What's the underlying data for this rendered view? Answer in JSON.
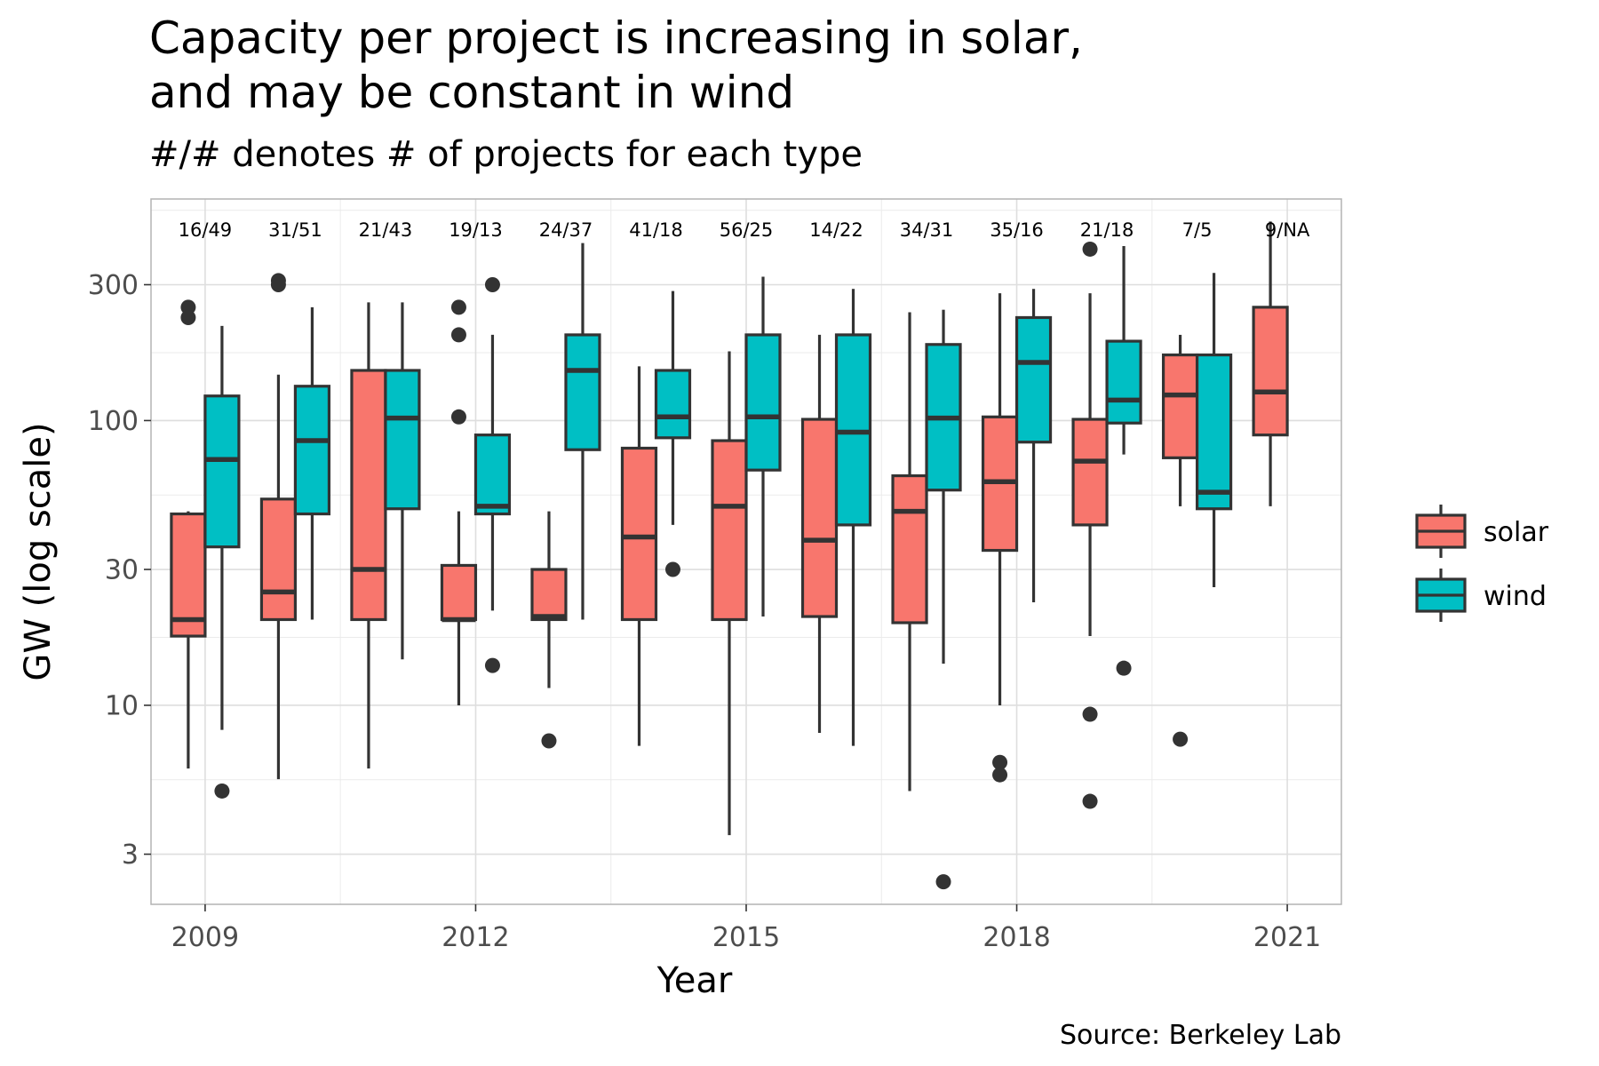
{
  "chart_data": {
    "type": "boxplot",
    "title": [
      "Capacity per project is increasing in solar,",
      "and may be constant in wind"
    ],
    "subtitle": "#/# denotes # of projects for each type",
    "xlabel": "Year",
    "ylabel": "GW (log scale)",
    "caption": "Source: Berkeley Lab",
    "y_scale": "log10",
    "ylim": [
      2.0,
      600
    ],
    "y_ticks": [
      3,
      10,
      30,
      100,
      300
    ],
    "x_ticks": [
      2009,
      2012,
      2015,
      2018,
      2021
    ],
    "xlim": [
      2008.4,
      2021.6
    ],
    "grid": true,
    "legend": {
      "position": "right",
      "entries": [
        "solar",
        "wind"
      ]
    },
    "colors": {
      "solar": "#F8766D",
      "wind": "#00BFC4",
      "line": "#333333",
      "grid": "#ebebeb",
      "border": "#b3b3b3"
    },
    "counts": [
      {
        "year": 2009,
        "label": "16/49"
      },
      {
        "year": 2010,
        "label": "31/51"
      },
      {
        "year": 2011,
        "label": "21/43"
      },
      {
        "year": 2012,
        "label": "19/13"
      },
      {
        "year": 2013,
        "label": "24/37"
      },
      {
        "year": 2014,
        "label": "41/18"
      },
      {
        "year": 2015,
        "label": "56/25"
      },
      {
        "year": 2016,
        "label": "14/22"
      },
      {
        "year": 2017,
        "label": "34/31"
      },
      {
        "year": 2018,
        "label": "35/16"
      },
      {
        "year": 2019,
        "label": "21/18"
      },
      {
        "year": 2020,
        "label": "7/5"
      },
      {
        "year": 2021,
        "label": "9/NA"
      }
    ],
    "series": [
      {
        "name": "solar",
        "boxes": [
          {
            "year": 2009,
            "low": 6,
            "q1": 17.5,
            "median": 20,
            "q3": 47,
            "high": 48,
            "outliers": [
              250,
              230
            ]
          },
          {
            "year": 2010,
            "low": 5.5,
            "q1": 20,
            "median": 25,
            "q3": 53,
            "high": 145,
            "outliers": [
              300,
              310
            ]
          },
          {
            "year": 2011,
            "low": 6,
            "q1": 20,
            "median": 30,
            "q3": 150,
            "high": 260,
            "outliers": []
          },
          {
            "year": 2012,
            "low": 10,
            "q1": 20,
            "median": 20,
            "q3": 31,
            "high": 48,
            "outliers": [
              250,
              200,
              103
            ]
          },
          {
            "year": 2013,
            "low": 11.5,
            "q1": 20,
            "median": 20.5,
            "q3": 30,
            "high": 48,
            "outliers": [
              7.5
            ]
          },
          {
            "year": 2014,
            "low": 7.2,
            "q1": 20,
            "median": 39,
            "q3": 80,
            "high": 155,
            "outliers": []
          },
          {
            "year": 2015,
            "low": 3.5,
            "q1": 20,
            "median": 50,
            "q3": 85,
            "high": 175,
            "outliers": []
          },
          {
            "year": 2016,
            "low": 8,
            "q1": 20.5,
            "median": 38,
            "q3": 101,
            "high": 200,
            "outliers": []
          },
          {
            "year": 2017,
            "low": 5,
            "q1": 19.5,
            "median": 48,
            "q3": 64,
            "high": 240,
            "outliers": []
          },
          {
            "year": 2018,
            "low": 10,
            "q1": 35,
            "median": 61,
            "q3": 103,
            "high": 280,
            "outliers": [
              6.3,
              5.7
            ]
          },
          {
            "year": 2019,
            "low": 17.5,
            "q1": 43,
            "median": 72,
            "q3": 101,
            "high": 280,
            "outliers": [
              9.3,
              4.6,
              400
            ]
          },
          {
            "year": 2020,
            "low": 50,
            "q1": 74,
            "median": 123,
            "q3": 170,
            "high": 200,
            "outliers": [
              7.6
            ]
          },
          {
            "year": 2021,
            "low": 50,
            "q1": 89,
            "median": 126,
            "q3": 250,
            "high": 500,
            "outliers": []
          }
        ]
      },
      {
        "name": "wind",
        "boxes": [
          {
            "year": 2009,
            "low": 8.2,
            "q1": 36,
            "median": 73,
            "q3": 122,
            "high": 215,
            "outliers": [
              5
            ]
          },
          {
            "year": 2010,
            "low": 20,
            "q1": 47,
            "median": 85,
            "q3": 132,
            "high": 250,
            "outliers": []
          },
          {
            "year": 2011,
            "low": 14.5,
            "q1": 49,
            "median": 102,
            "q3": 150,
            "high": 260,
            "outliers": []
          },
          {
            "year": 2012,
            "low": 21.5,
            "q1": 47,
            "median": 50,
            "q3": 89,
            "high": 200,
            "outliers": [
              300,
              13.8
            ]
          },
          {
            "year": 2013,
            "low": 20,
            "q1": 79,
            "median": 150,
            "q3": 200,
            "high": 420,
            "outliers": []
          },
          {
            "year": 2014,
            "low": 43,
            "q1": 87,
            "median": 103,
            "q3": 150,
            "high": 285,
            "outliers": [
              30
            ]
          },
          {
            "year": 2015,
            "low": 20.5,
            "q1": 67,
            "median": 103,
            "q3": 200,
            "high": 320,
            "outliers": []
          },
          {
            "year": 2016,
            "low": 7.2,
            "q1": 43,
            "median": 91,
            "q3": 200,
            "high": 290,
            "outliers": []
          },
          {
            "year": 2017,
            "low": 14,
            "q1": 57,
            "median": 102,
            "q3": 185,
            "high": 245,
            "outliers": [
              2.4
            ]
          },
          {
            "year": 2018,
            "low": 23,
            "q1": 84,
            "median": 160,
            "q3": 230,
            "high": 290,
            "outliers": []
          },
          {
            "year": 2019,
            "low": 76,
            "q1": 98,
            "median": 118,
            "q3": 190,
            "high": 410,
            "outliers": [
              13.5
            ]
          },
          {
            "year": 2020,
            "low": 26,
            "q1": 49,
            "median": 56,
            "q3": 170,
            "high": 330,
            "outliers": []
          }
        ]
      }
    ]
  }
}
